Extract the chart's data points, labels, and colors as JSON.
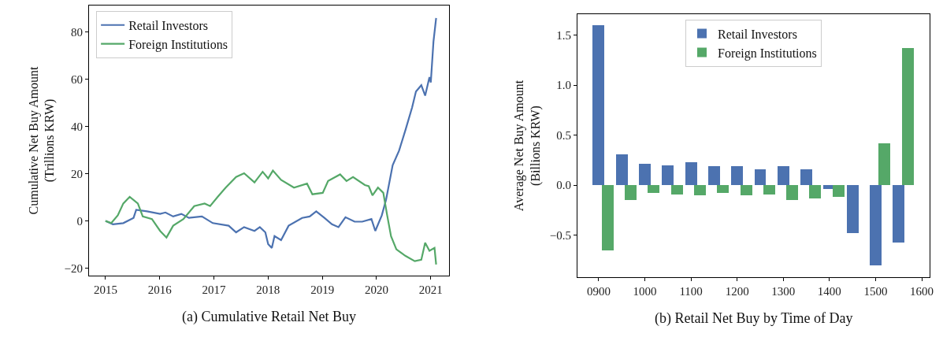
{
  "chart_data": [
    {
      "type": "line",
      "ylabel": "Cumulative Net Buy Amount\n(Trillions KRW)",
      "annotations": [
        "(a) Cumulative Retail Net Buy"
      ],
      "legend": "top left",
      "grid": false,
      "xlim": [
        "2014-09-12",
        "2021-05-04"
      ],
      "ylim": [
        -23.1,
        91.1
      ],
      "xticks": [
        {
          "value": "2015-01-01",
          "label": "2015"
        },
        {
          "value": "2016-01-01",
          "label": "2016"
        },
        {
          "value": "2017-01-01",
          "label": "2017"
        },
        {
          "value": "2018-01-01",
          "label": "2018"
        },
        {
          "value": "2019-01-01",
          "label": "2019"
        },
        {
          "value": "2020-01-01",
          "label": "2020"
        },
        {
          "value": "2021-01-01",
          "label": "2021"
        }
      ],
      "yticks": [
        {
          "value": -20,
          "label": "−20"
        },
        0,
        20,
        40,
        60,
        80
      ],
      "series": [
        {
          "name": "Retail Investors",
          "color": "#4c72b0",
          "x": [
            "2015-01-01",
            "2015-02-20",
            "2015-05-01",
            "2015-07-09",
            "2015-07-27",
            "2015-10-08",
            "2016-01-04",
            "2016-02-09",
            "2016-04-01",
            "2016-05-26",
            "2016-07-16",
            "2016-10-12",
            "2016-12-24",
            "2017-04-10",
            "2017-05-30",
            "2017-07-23",
            "2017-10-01",
            "2017-11-06",
            "2017-12-13",
            "2018-01-01",
            "2018-01-26",
            "2018-02-13",
            "2018-03-29",
            "2018-05-19",
            "2018-08-18",
            "2018-10-08",
            "2018-11-21",
            "2019-01-15",
            "2019-03-07",
            "2019-04-20",
            "2019-06-06",
            "2019-08-07",
            "2019-09-27",
            "2019-11-28",
            "2019-12-24",
            "2020-02-06",
            "2020-03-06",
            "2020-04-19",
            "2020-06-01",
            "2020-07-15",
            "2020-08-28",
            "2020-09-23",
            "2020-10-29",
            "2020-11-24",
            "2020-12-23",
            "2021-01-01",
            "2021-01-19",
            "2021-02-06"
          ],
          "values": [
            0,
            -1.4,
            -0.9,
            1.3,
            4.7,
            4.1,
            3.0,
            3.6,
            1.9,
            3.0,
            1.3,
            1.9,
            -0.9,
            -2,
            -4.8,
            -2.6,
            -4.2,
            -2.6,
            -4.8,
            -9.8,
            -11.4,
            -6.4,
            -8.1,
            -2,
            1.3,
            1.9,
            4.1,
            1.3,
            -1.4,
            -2.6,
            1.6,
            -0.3,
            -0.3,
            0.8,
            -4.2,
            2.4,
            9.1,
            23.6,
            29.7,
            38.6,
            48,
            54.7,
            57.4,
            53,
            60.8,
            58.6,
            75.8,
            85.8
          ]
        },
        {
          "name": "Foreign Institutions",
          "color": "#55a868",
          "x": [
            "2015-01-01",
            "2015-02-09",
            "2015-03-25",
            "2015-05-01",
            "2015-06-13",
            "2015-08-07",
            "2015-09-09",
            "2015-11-10",
            "2016-01-04",
            "2016-02-16",
            "2016-04-01",
            "2016-06-09",
            "2016-08-21",
            "2016-10-30",
            "2016-12-06",
            "2017-01-26",
            "2017-03-21",
            "2017-05-30",
            "2017-07-23",
            "2017-10-01",
            "2017-11-25",
            "2018-01-01",
            "2018-02-02",
            "2018-03-29",
            "2018-06-24",
            "2018-09-20",
            "2018-10-26",
            "2019-01-04",
            "2019-02-09",
            "2019-05-01",
            "2019-06-13",
            "2019-07-27",
            "2019-10-15",
            "2019-11-10",
            "2019-12-05",
            "2020-01-11",
            "2020-02-16",
            "2020-03-13",
            "2020-04-08",
            "2020-05-14",
            "2020-07-15",
            "2020-09-15",
            "2020-10-29",
            "2020-11-24",
            "2020-12-23",
            "2021-01-26",
            "2021-02-06"
          ],
          "values": [
            0,
            -0.9,
            2.4,
            7.4,
            10.2,
            7.4,
            1.9,
            0.8,
            -4.2,
            -7,
            -2,
            0.8,
            6.3,
            7.4,
            6.3,
            10.2,
            14.1,
            18.6,
            20.2,
            16.3,
            20.8,
            18,
            21.3,
            17.4,
            14.1,
            15.8,
            11.3,
            11.9,
            16.9,
            19.7,
            16.9,
            18.6,
            15.2,
            14.7,
            10.8,
            14.1,
            11.9,
            2.4,
            -6.4,
            -12,
            -14.8,
            -17,
            -16.4,
            -9.2,
            -12.6,
            -11.4,
            -18.4
          ]
        }
      ]
    },
    {
      "type": "bar",
      "ylabel": "Average Net Buy Amount\n(Billions KRW)",
      "annotations": [
        "(b) Retail Net Buy by Time of Day"
      ],
      "legend": "top",
      "grid": false,
      "x": [
        900,
        950,
        1000,
        1050,
        1100,
        1150,
        1200,
        1250,
        1300,
        1350,
        1400,
        1450,
        1500,
        1550
      ],
      "xlim": [
        854,
        1617
      ],
      "ylim": [
        -0.92,
        1.71
      ],
      "xticks": [
        {
          "value": 900,
          "label": "0900"
        },
        1000,
        1100,
        1200,
        1300,
        1400,
        1500,
        1600
      ],
      "yticks": [
        {
          "value": -0.5,
          "label": "−0.5"
        },
        {
          "value": 0,
          "label": "0.0"
        },
        0.5,
        {
          "value": 1,
          "label": "1.0"
        },
        1.5
      ],
      "series": [
        {
          "name": "Retail Investors",
          "color": "#4c72b0",
          "values": [
            1.6,
            0.31,
            0.21,
            0.2,
            0.23,
            0.19,
            0.19,
            0.16,
            0.19,
            0.155,
            -0.04,
            -0.48,
            -0.8,
            -0.57
          ]
        },
        {
          "name": "Foreign Institutions",
          "color": "#55a868",
          "values": [
            -0.65,
            -0.15,
            -0.08,
            -0.09,
            -0.1,
            -0.08,
            -0.1,
            -0.09,
            -0.15,
            -0.13,
            -0.12,
            0.0,
            0.42,
            1.37
          ]
        }
      ]
    }
  ]
}
